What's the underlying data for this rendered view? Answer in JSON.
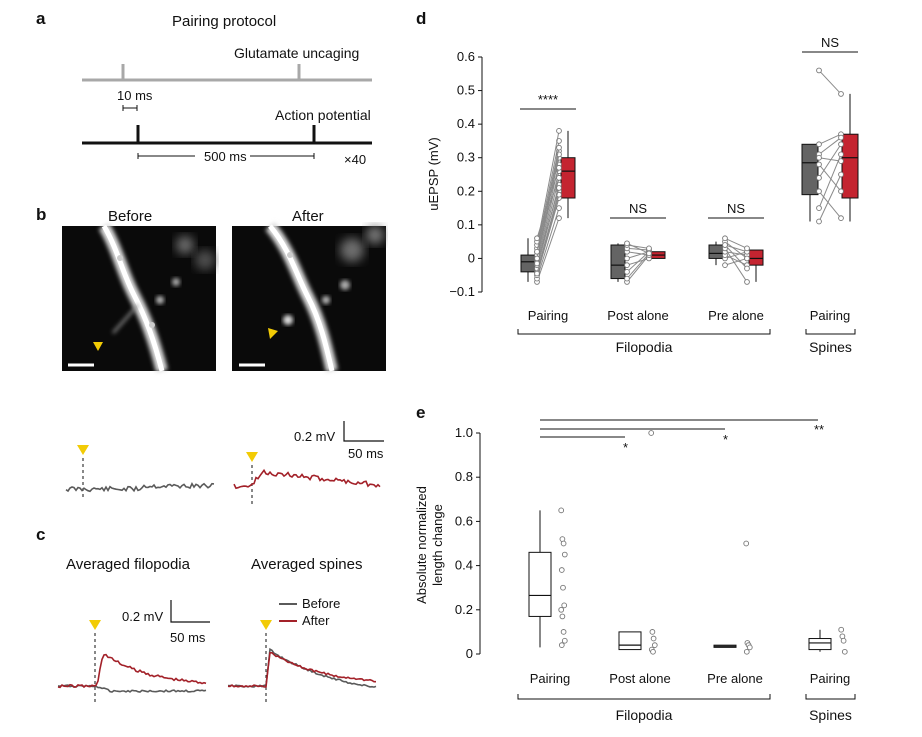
{
  "panels": {
    "a": {
      "letter": "a",
      "title": "Pairing protocol",
      "glutamate_label": "Glutamate uncaging",
      "ap_label": "Action potential",
      "scale_10ms": "10 ms",
      "scale_500ms": "500 ms",
      "repeat": "×40"
    },
    "b": {
      "letter": "b",
      "before": "Before",
      "after": "After",
      "scale_mv": "0.2 mV",
      "scale_ms": "50 ms"
    },
    "c": {
      "letter": "c",
      "filopodia": "Averaged filopodia",
      "spines": "Averaged spines",
      "scale_mv": "0.2 mV",
      "scale_ms": "50 ms",
      "legend_before": "Before",
      "legend_after": "After"
    },
    "d": {
      "letter": "d"
    },
    "e": {
      "letter": "e"
    }
  },
  "colors": {
    "before": "#5a5a5a",
    "after": "#a32129",
    "box_gray": "#646464",
    "box_red": "#c42430",
    "marker": "#f2cb05",
    "protocol_gray": "#a8a8a8"
  },
  "chart_data": [
    {
      "id": "d",
      "type": "box",
      "ylabel": "uEPSP (mV)",
      "ylim": [
        -0.1,
        0.6
      ],
      "yticks": [
        "−0.1",
        "0",
        "0.1",
        "0.2",
        "0.3",
        "0.4",
        "0.5",
        "0.6"
      ],
      "categories": [
        "Pairing",
        "Post alone",
        "Pre alone",
        "Pairing"
      ],
      "groups": [
        {
          "name": "Filopodia",
          "members": [
            0,
            1,
            2
          ]
        },
        {
          "name": "Spines",
          "members": [
            3
          ]
        }
      ],
      "significance": [
        "****",
        "NS",
        "NS",
        "NS"
      ],
      "boxes": [
        {
          "category": 0,
          "color": "gray",
          "whisker": [
            -0.07,
            0.06
          ],
          "q1": -0.04,
          "median": -0.01,
          "q3": 0.01
        },
        {
          "category": 0,
          "color": "red",
          "whisker": [
            0.12,
            0.38
          ],
          "q1": 0.18,
          "median": 0.26,
          "q3": 0.3
        },
        {
          "category": 1,
          "color": "gray",
          "whisker": [
            -0.07,
            0.045
          ],
          "q1": -0.06,
          "median": -0.02,
          "q3": 0.04
        },
        {
          "category": 1,
          "color": "red",
          "whisker": [
            0.0,
            0.02
          ],
          "q1": 0.0,
          "median": 0.01,
          "q3": 0.02
        },
        {
          "category": 2,
          "color": "gray",
          "whisker": [
            -0.02,
            0.05
          ],
          "q1": 0.0,
          "median": 0.015,
          "q3": 0.04
        },
        {
          "category": 2,
          "color": "red",
          "whisker": [
            -0.07,
            0.025
          ],
          "q1": -0.02,
          "median": 0.0,
          "q3": 0.025
        },
        {
          "category": 3,
          "color": "gray",
          "whisker": [
            0.11,
            0.34
          ],
          "q1": 0.19,
          "median": 0.285,
          "q3": 0.34
        },
        {
          "category": 3,
          "color": "red",
          "whisker": [
            0.11,
            0.49
          ],
          "q1": 0.18,
          "median": 0.3,
          "q3": 0.37
        }
      ],
      "paired_points": [
        {
          "category": 0,
          "pairs": [
            [
              -0.07,
              0.12
            ],
            [
              -0.06,
              0.15
            ],
            [
              -0.05,
              0.18
            ],
            [
              -0.04,
              0.2
            ],
            [
              -0.03,
              0.22
            ],
            [
              -0.02,
              0.24
            ],
            [
              -0.01,
              0.26
            ],
            [
              0.0,
              0.28
            ],
            [
              0.01,
              0.3
            ],
            [
              0.02,
              0.32
            ],
            [
              0.03,
              0.35
            ],
            [
              0.04,
              0.38
            ],
            [
              0.05,
              0.24
            ],
            [
              0.06,
              0.27
            ],
            [
              -0.045,
              0.19
            ],
            [
              -0.015,
              0.21
            ],
            [
              0.0,
              0.31
            ],
            [
              0.02,
              0.33
            ]
          ]
        },
        {
          "category": 1,
          "pairs": [
            [
              -0.07,
              0.01
            ],
            [
              -0.06,
              0.015
            ],
            [
              -0.04,
              0.02
            ],
            [
              -0.02,
              0.0
            ],
            [
              0.0,
              0.02
            ],
            [
              0.02,
              0.01
            ],
            [
              0.03,
              0.025
            ],
            [
              0.04,
              0.03
            ],
            [
              0.045,
              0.015
            ]
          ]
        },
        {
          "category": 2,
          "pairs": [
            [
              -0.02,
              0.0
            ],
            [
              0.0,
              0.02
            ],
            [
              0.01,
              -0.02
            ],
            [
              0.02,
              0.01
            ],
            [
              0.03,
              -0.07
            ],
            [
              0.04,
              0.02
            ],
            [
              0.05,
              0.0
            ],
            [
              0.06,
              0.03
            ],
            [
              0.04,
              -0.03
            ]
          ]
        },
        {
          "category": 3,
          "pairs": [
            [
              0.56,
              0.49
            ],
            [
              0.34,
              0.37
            ],
            [
              0.31,
              0.36
            ],
            [
              0.3,
              0.29
            ],
            [
              0.28,
              0.2
            ],
            [
              0.24,
              0.34
            ],
            [
              0.2,
              0.12
            ],
            [
              0.15,
              0.31
            ],
            [
              0.11,
              0.25
            ]
          ]
        }
      ]
    },
    {
      "id": "e",
      "type": "box",
      "ylabel_lines": [
        "Absolute normalized",
        "length change"
      ],
      "ylim": [
        0,
        1.0
      ],
      "yticks": [
        "0",
        "0.2",
        "0.4",
        "0.6",
        "0.8",
        "1.0"
      ],
      "categories": [
        "Pairing",
        "Post alone",
        "Pre alone",
        "Pairing"
      ],
      "groups": [
        {
          "name": "Filopodia",
          "members": [
            0,
            1,
            2
          ]
        },
        {
          "name": "Spines",
          "members": [
            3
          ]
        }
      ],
      "significance": [
        "*",
        "*",
        "**"
      ],
      "boxes": [
        {
          "category": 0,
          "whisker": [
            0.03,
            0.65
          ],
          "q1": 0.17,
          "median": 0.265,
          "q3": 0.46
        },
        {
          "category": 1,
          "whisker": [
            0.02,
            0.1
          ],
          "q1": 0.02,
          "median": 0.04,
          "q3": 0.1
        },
        {
          "category": 2,
          "whisker": [
            0.03,
            0.04
          ],
          "q1": 0.03,
          "median": 0.035,
          "q3": 0.04
        },
        {
          "category": 3,
          "whisker": [
            0.01,
            0.11
          ],
          "q1": 0.02,
          "median": 0.05,
          "q3": 0.07
        }
      ],
      "points": [
        {
          "category": 0,
          "values": [
            0.65,
            0.52,
            0.5,
            0.45,
            0.38,
            0.3,
            0.22,
            0.2,
            0.17,
            0.1,
            0.06,
            0.04
          ]
        },
        {
          "category": 1,
          "values": [
            1.0,
            0.1,
            0.07,
            0.04,
            0.02,
            0.01
          ]
        },
        {
          "category": 2,
          "values": [
            0.5,
            0.05,
            0.04,
            0.03,
            0.01
          ]
        },
        {
          "category": 3,
          "values": [
            0.11,
            0.08,
            0.06,
            0.01
          ]
        }
      ]
    }
  ]
}
